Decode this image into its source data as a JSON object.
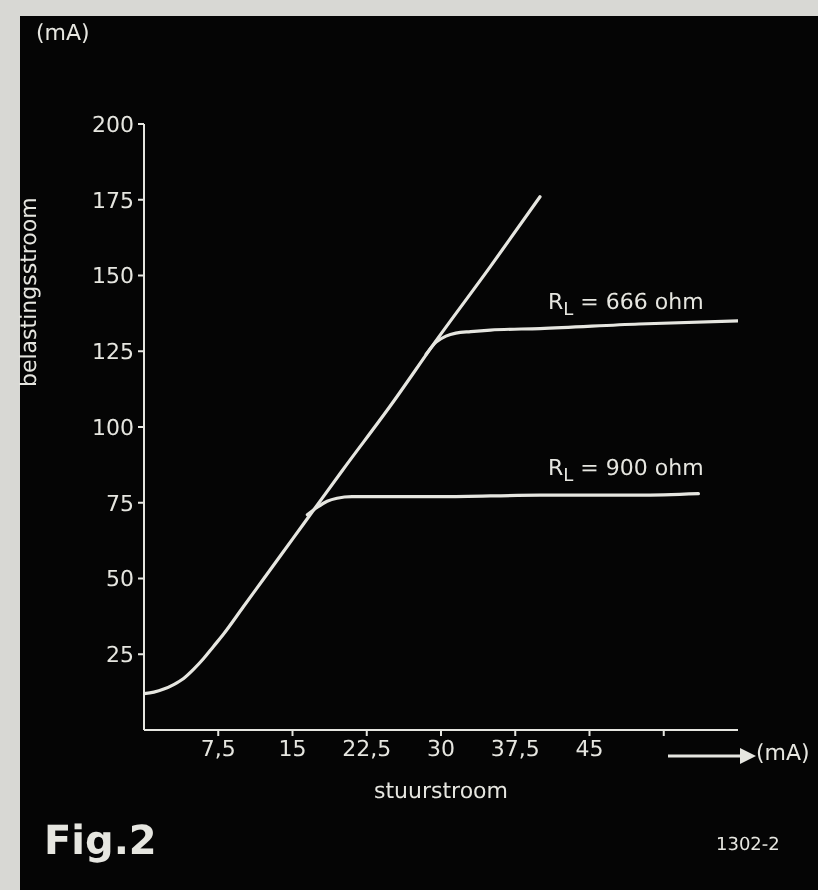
{
  "chart_data": {
    "type": "line",
    "xlabel": "stuurstroom",
    "ylabel": "belastingsstroom",
    "annotations": [
      "(mA)",
      "(mA)",
      "Fig.2",
      "1302-2"
    ],
    "xlim": [
      0,
      60
    ],
    "ylim": [
      0,
      200
    ],
    "xticks": [
      {
        "value": 7.5,
        "label": "7,5"
      },
      {
        "value": 15,
        "label": "15"
      },
      {
        "value": 22.5,
        "label": "22,5"
      },
      {
        "value": 30,
        "label": "30"
      },
      {
        "value": 37.5,
        "label": "37,5"
      },
      {
        "value": 45,
        "label": "45"
      },
      {
        "value": 52.5,
        "label": null
      }
    ],
    "yticks": [
      25,
      50,
      75,
      100,
      125,
      150,
      175,
      200
    ],
    "grid": false,
    "legend": false,
    "marker": "none",
    "line_style": "solid",
    "series": [
      {
        "color": "#e6e6e0",
        "x": [
          0,
          1,
          2,
          3,
          4,
          5,
          6,
          7,
          8,
          10,
          12,
          14,
          16,
          17,
          20,
          25,
          29.4,
          35,
          40
        ],
        "values": [
          12,
          12.5,
          13.5,
          15,
          17,
          20,
          23.5,
          27.5,
          31.5,
          40.5,
          49.5,
          58.5,
          67.5,
          72,
          85.5,
          107.5,
          128,
          153,
          176
        ]
      },
      {
        "name": "R$_{L}$ = 900 ohm",
        "color": "#e6e6e0",
        "x": [
          16.5,
          17.5,
          18.5,
          19.5,
          21,
          23,
          30,
          40,
          50,
          56
        ],
        "values": [
          71,
          73.5,
          75.5,
          76.5,
          77,
          77,
          77,
          77.5,
          77.5,
          78
        ]
      },
      {
        "name": "R$_{L}$ = 666 ohm",
        "color": "#e6e6e0",
        "x": [
          28.5,
          29.5,
          30.5,
          31.5,
          33,
          35,
          40,
          50,
          60
        ],
        "values": [
          124,
          128,
          130,
          131,
          131.5,
          132,
          132.5,
          134,
          135
        ]
      }
    ]
  }
}
